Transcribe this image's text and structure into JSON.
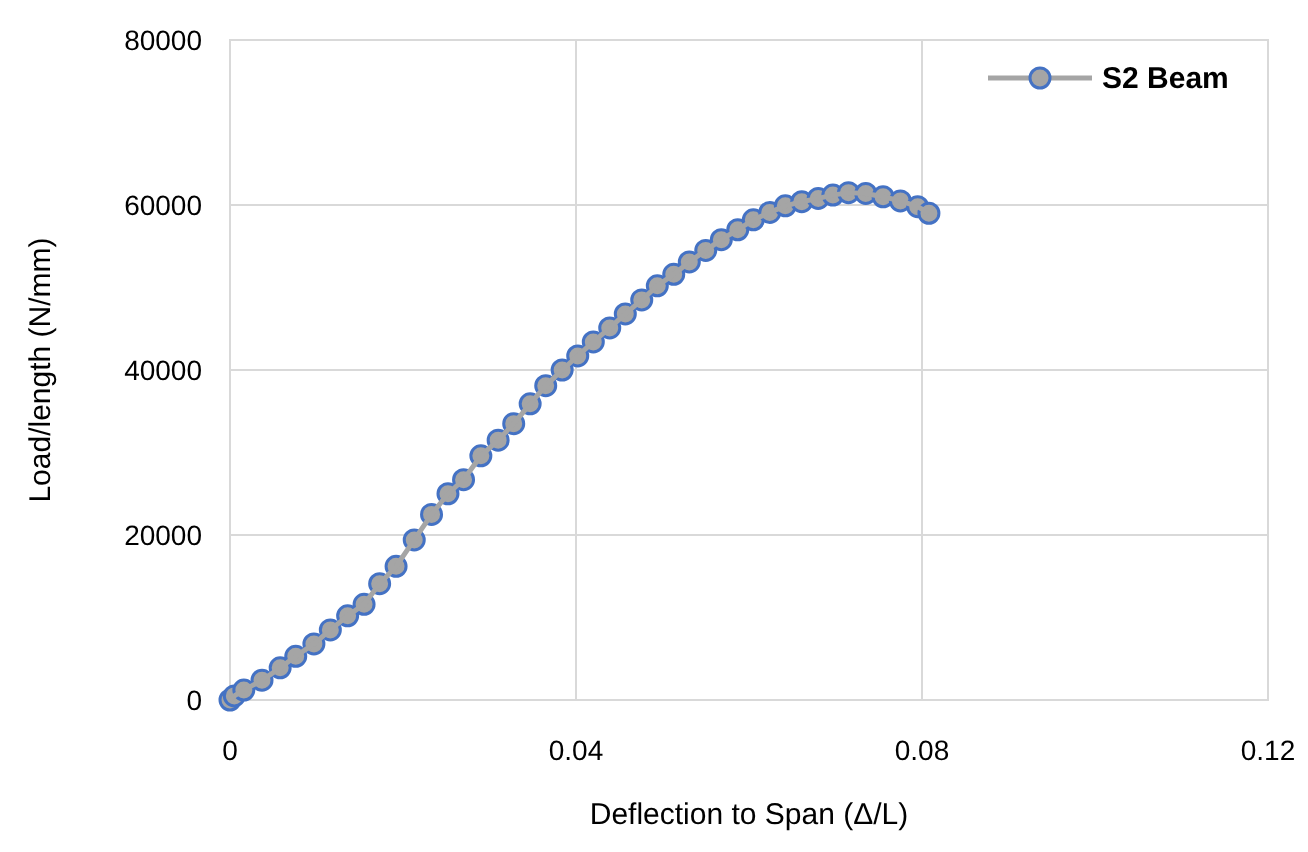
{
  "chart_data": {
    "type": "line",
    "xlabel": "Deflection to Span (Δ/L)",
    "ylabel": "Load/length (N/mm)",
    "xlim": [
      0,
      0.12
    ],
    "xticks": [
      0,
      0.04,
      0.08,
      0.12
    ],
    "ylim": [
      0,
      80000
    ],
    "yticks": [
      0,
      20000,
      40000,
      60000,
      80000
    ],
    "grid": true,
    "legend": "top right",
    "marker": "circle",
    "line_style": "solid",
    "x": [
      0,
      0.0005,
      0.0016,
      0.0037,
      0.0058,
      0.0076,
      0.0097,
      0.0116,
      0.0136,
      0.0155,
      0.0173,
      0.0192,
      0.0213,
      0.0233,
      0.0252,
      0.027,
      0.029,
      0.031,
      0.0328,
      0.0347,
      0.0365,
      0.0384,
      0.0402,
      0.042,
      0.0439,
      0.0457,
      0.0476,
      0.0494,
      0.0513,
      0.0531,
      0.055,
      0.0568,
      0.0587,
      0.0605,
      0.0624,
      0.0642,
      0.0661,
      0.068,
      0.0697,
      0.0715,
      0.0735,
      0.0755,
      0.0775,
      0.0795,
      0.0808
    ],
    "series": [
      {
        "name": "S2 Beam",
        "color": "#a5a5a5",
        "values": [
          0,
          500,
          1200,
          2400,
          3900,
          5300,
          6800,
          8500,
          10200,
          11600,
          14100,
          16200,
          19400,
          22500,
          25000,
          26700,
          29600,
          31500,
          33500,
          35900,
          38100,
          40000,
          41700,
          43400,
          45100,
          46800,
          48500,
          50200,
          51600,
          53100,
          54500,
          55800,
          57000,
          58200,
          59100,
          59900,
          60400,
          60800,
          61200,
          61500,
          61400,
          61000,
          60500,
          59800,
          59000
        ]
      }
    ]
  }
}
